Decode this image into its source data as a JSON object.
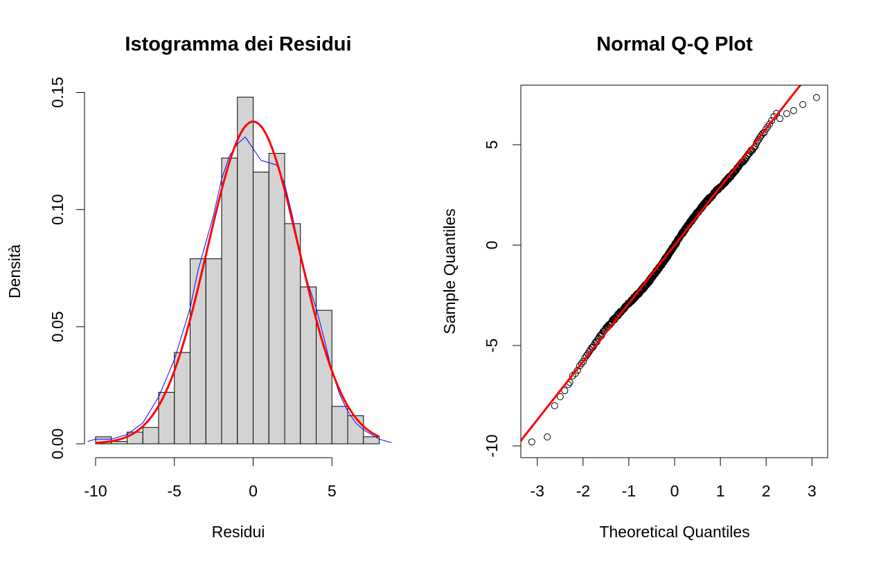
{
  "colors": {
    "bar_fill": "#d3d3d3",
    "bar_stroke": "#000000",
    "normal_curve": "#ff0000",
    "kde_curve": "#0000ff",
    "qq_line": "#ff0000",
    "qq_points": "#000000"
  },
  "chart_data": [
    {
      "type": "bar",
      "subtype": "histogram",
      "title": "Istogramma dei Residui",
      "xlabel": "Residui",
      "ylabel": "Densità",
      "xlim": [
        -10,
        8
      ],
      "ylim": [
        0,
        0.15
      ],
      "xticks": [
        -10,
        -5,
        0,
        5
      ],
      "xtick_labels": [
        "-10",
        "-5",
        "0",
        "5"
      ],
      "yticks": [
        0,
        0.05,
        0.1,
        0.15
      ],
      "ytick_labels": [
        "0.00",
        "0.05",
        "0.10",
        "0.15"
      ],
      "bin_edges": [
        -10,
        -9,
        -8,
        -7,
        -6,
        -5,
        -4,
        -3,
        -2,
        -1,
        0,
        1,
        2,
        3,
        4,
        5,
        6,
        7,
        8
      ],
      "densities": [
        0.003,
        0.001,
        0.005,
        0.007,
        0.022,
        0.039,
        0.079,
        0.079,
        0.122,
        0.148,
        0.116,
        0.124,
        0.094,
        0.067,
        0.057,
        0.016,
        0.012,
        0.003
      ],
      "series": [
        {
          "name": "normal",
          "kind": "curve",
          "mean": 0,
          "sd": 2.9
        },
        {
          "name": "kde",
          "kind": "curve",
          "x": [
            -10.5,
            -10,
            -9,
            -8,
            -7,
            -6,
            -5,
            -4,
            -3.5,
            -3,
            -2.5,
            -2,
            -1.5,
            -1,
            -0.5,
            0,
            0.5,
            1,
            1.5,
            2,
            2.5,
            3,
            3.5,
            4,
            4.5,
            5,
            5.5,
            6,
            6.5,
            7,
            7.5,
            8,
            8.5,
            8.8
          ],
          "y": [
            0.001,
            0.002,
            0.002,
            0.004,
            0.009,
            0.02,
            0.036,
            0.058,
            0.074,
            0.086,
            0.098,
            0.113,
            0.123,
            0.128,
            0.131,
            0.126,
            0.121,
            0.12,
            0.119,
            0.111,
            0.097,
            0.081,
            0.068,
            0.058,
            0.045,
            0.031,
            0.021,
            0.014,
            0.009,
            0.006,
            0.004,
            0.002,
            0.001,
            0.0005
          ]
        }
      ]
    },
    {
      "type": "scatter",
      "subtype": "qq-plot",
      "title": "Normal Q-Q Plot",
      "xlabel": "Theoretical Quantiles",
      "ylabel": "Sample Quantiles",
      "xlim": [
        -3.3,
        3.3
      ],
      "ylim": [
        -10.3,
        7.9
      ],
      "xticks": [
        -3,
        -2,
        -1,
        0,
        1,
        2,
        3
      ],
      "xtick_labels": [
        "-3",
        "-2",
        "-1",
        "0",
        "1",
        "2",
        "3"
      ],
      "yticks": [
        -10,
        -5,
        0,
        5
      ],
      "ytick_labels": [
        "-10",
        "-5",
        "0",
        "5"
      ],
      "reference_line": {
        "intercept": 0,
        "slope": 2.9
      },
      "n_points": 500,
      "outliers": [
        {
          "x": -3.12,
          "y": -9.8
        },
        {
          "x": -2.78,
          "y": -9.55
        },
        {
          "x": -2.62,
          "y": -8.0
        },
        {
          "x": -2.5,
          "y": -7.55
        },
        {
          "x": -2.4,
          "y": -7.25
        },
        {
          "x": -2.32,
          "y": -6.95
        },
        {
          "x": 2.3,
          "y": 6.3
        },
        {
          "x": 2.45,
          "y": 6.55
        },
        {
          "x": 2.6,
          "y": 6.7
        },
        {
          "x": 2.8,
          "y": 7.0
        },
        {
          "x": 3.1,
          "y": 7.35
        }
      ]
    }
  ]
}
